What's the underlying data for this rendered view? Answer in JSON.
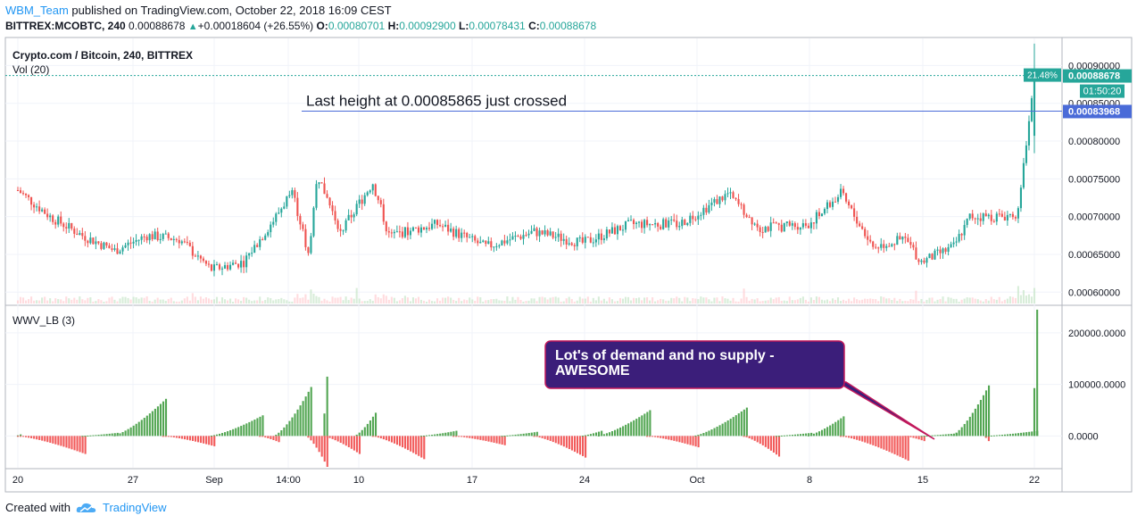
{
  "header": {
    "author": "WBM_Team",
    "published_text": "published on TradingView.com, October 22, 2018 16:09 CEST",
    "symbol_line": "BITTREX:MCOBTC, 240",
    "last_price": "0.00088678",
    "change": "+0.00018604 (+26.55%)",
    "o_label": "O:",
    "o_value": "0.00080701",
    "h_label": "H:",
    "h_value": "0.00092900",
    "l_label": "L:",
    "l_value": "0.00078431",
    "c_label": "C:",
    "c_value": "0.00088678"
  },
  "footer": {
    "created_with": "Created with",
    "brand": "TradingView"
  },
  "colors": {
    "up": "#26a69a",
    "down": "#ef5350",
    "wwv_up": "#53a653",
    "wwv_down": "#f25b5b",
    "line": "#4a6bd8",
    "annotation_bg": "#3b1e7a",
    "annotation_border": "#c2185b"
  },
  "chart_data": [
    {
      "type": "candlestick",
      "title": "Crypto.com / Bitcoin, 240, BITTREX",
      "sub_label": "Vol (20)",
      "y_ticks": [
        "0.00090000",
        "0.00085000",
        "0.00080000",
        "0.00075000",
        "0.00070000",
        "0.00065000",
        "0.00060000"
      ],
      "ylim": [
        0.000585,
        0.00093
      ],
      "x_ticks": [
        "20",
        "27",
        "Sep",
        "14:00",
        "10",
        "17",
        "24",
        "Oct",
        "8",
        "15",
        "22"
      ],
      "price_labels": {
        "last": "0.00088678",
        "change_pct": "21.48%",
        "countdown": "01:50:20",
        "horizontal_line": "0.00083968"
      },
      "annotation": "Last height at 0.00085865 just crossed",
      "anchors": [
        {
          "x": "Aug 20",
          "price": 0.000735
        },
        {
          "x": "Aug 22",
          "price": 0.0007
        },
        {
          "x": "Aug 24",
          "price": 0.000675
        },
        {
          "x": "Aug 26",
          "price": 0.000655
        },
        {
          "x": "Aug 28",
          "price": 0.000675
        },
        {
          "x": "Aug 30",
          "price": 0.00067
        },
        {
          "x": "Sep 1",
          "price": 0.00063
        },
        {
          "x": "Sep 3",
          "price": 0.00064
        },
        {
          "x": "Sep 5",
          "price": 0.0007
        },
        {
          "x": "Sep 6",
          "price": 0.000735
        },
        {
          "x": "Sep 7",
          "price": 0.00065
        },
        {
          "x": "Sep 7 14:00",
          "price": 0.000755
        },
        {
          "x": "Sep 9",
          "price": 0.00068
        },
        {
          "x": "Sep 11",
          "price": 0.000745
        },
        {
          "x": "Sep 12",
          "price": 0.000675
        },
        {
          "x": "Sep 15",
          "price": 0.00069
        },
        {
          "x": "Sep 18",
          "price": 0.00066
        },
        {
          "x": "Sep 21",
          "price": 0.00068
        },
        {
          "x": "Sep 24",
          "price": 0.000665
        },
        {
          "x": "Sep 27",
          "price": 0.00069
        },
        {
          "x": "Sep 30",
          "price": 0.00069
        },
        {
          "x": "Oct 3",
          "price": 0.00073
        },
        {
          "x": "Oct 5",
          "price": 0.000685
        },
        {
          "x": "Oct 8",
          "price": 0.00069
        },
        {
          "x": "Oct 10",
          "price": 0.00073
        },
        {
          "x": "Oct 12",
          "price": 0.00066
        },
        {
          "x": "Oct 14",
          "price": 0.00067
        },
        {
          "x": "Oct 15",
          "price": 0.00064
        },
        {
          "x": "Oct 17",
          "price": 0.00066
        },
        {
          "x": "Oct 18",
          "price": 0.0007
        },
        {
          "x": "Oct 20",
          "price": 0.0007
        },
        {
          "x": "Oct 21",
          "price": 0.000705
        },
        {
          "x": "Oct 22",
          "price": 0.000887
        }
      ]
    },
    {
      "type": "bar",
      "title": "WWV_LB (3)",
      "y_ticks": [
        "200000.0000",
        "100000.0000",
        "0.0000"
      ],
      "ylim": [
        -60000,
        250000
      ],
      "annotation": "Lot's of demand and no supply - AWESOME",
      "segments": [
        {
          "start": "Aug 20",
          "end": "Aug 20",
          "peak": 3000
        },
        {
          "start": "Aug 20",
          "end": "Aug 24",
          "peak": -35000
        },
        {
          "start": "Aug 24",
          "end": "Aug 26",
          "peak": 6000
        },
        {
          "start": "Aug 26",
          "end": "Aug 29",
          "peak": 72000
        },
        {
          "start": "Aug 29",
          "end": "Sep 1",
          "peak": -20000
        },
        {
          "start": "Sep 1",
          "end": "Sep 4",
          "peak": 40000
        },
        {
          "start": "Sep 4",
          "end": "Sep 5",
          "peak": -12000
        },
        {
          "start": "Sep 5",
          "end": "Sep 7",
          "peak": 95000
        },
        {
          "start": "Sep 7",
          "end": "Sep 8",
          "peak": -60000
        },
        {
          "start": "Sep 8",
          "end": "Sep 8",
          "peak": 115000
        },
        {
          "start": "Sep 8",
          "end": "Sep 10",
          "peak": -35000
        },
        {
          "start": "Sep 10",
          "end": "Sep 11",
          "peak": 45000
        },
        {
          "start": "Sep 11",
          "end": "Sep 14",
          "peak": -45000
        },
        {
          "start": "Sep 14",
          "end": "Sep 16",
          "peak": 10000
        },
        {
          "start": "Sep 16",
          "end": "Sep 19",
          "peak": -18000
        },
        {
          "start": "Sep 19",
          "end": "Sep 21",
          "peak": 8000
        },
        {
          "start": "Sep 21",
          "end": "Sep 24",
          "peak": -42000
        },
        {
          "start": "Sep 24",
          "end": "Sep 25",
          "peak": 10000
        },
        {
          "start": "Sep 25",
          "end": "Sep 28",
          "peak": 50000
        },
        {
          "start": "Sep 28",
          "end": "Oct 1",
          "peak": -22000
        },
        {
          "start": "Oct 1",
          "end": "Oct 4",
          "peak": 55000
        },
        {
          "start": "Oct 4",
          "end": "Oct 6",
          "peak": -40000
        },
        {
          "start": "Oct 6",
          "end": "Oct 8",
          "peak": 6000
        },
        {
          "start": "Oct 8",
          "end": "Oct 10",
          "peak": 38000
        },
        {
          "start": "Oct 10",
          "end": "Oct 14",
          "peak": -48000
        },
        {
          "start": "Oct 14",
          "end": "Oct 15",
          "peak": -10000
        },
        {
          "start": "Oct 15",
          "end": "Oct 17",
          "peak": 5000
        },
        {
          "start": "Oct 17",
          "end": "Oct 19",
          "peak": 98000
        },
        {
          "start": "Oct 19",
          "end": "Oct 19",
          "peak": -10000
        },
        {
          "start": "Oct 19",
          "end": "Oct 22",
          "peak": 10000
        },
        {
          "start": "Oct 22",
          "end": "Oct 22",
          "peak": 245000
        }
      ]
    }
  ]
}
